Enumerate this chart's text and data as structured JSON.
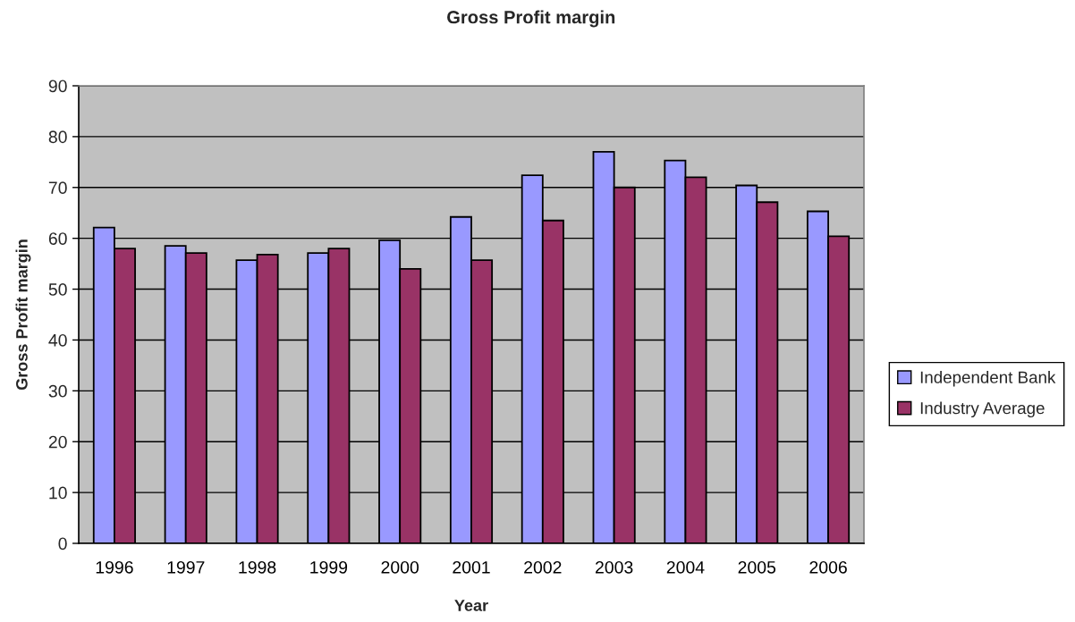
{
  "chart_data": {
    "type": "bar",
    "title": "Gross Profit margin",
    "xlabel": "Year",
    "ylabel": "Gross Profit margin",
    "categories": [
      "1996",
      "1997",
      "1998",
      "1999",
      "2000",
      "2001",
      "2002",
      "2003",
      "2004",
      "2005",
      "2006"
    ],
    "series": [
      {
        "name": "Independent Bank",
        "color": "#9999ff",
        "values": [
          62.1,
          58.5,
          55.7,
          57.1,
          59.6,
          64.2,
          72.4,
          77.0,
          75.3,
          70.4,
          65.3
        ]
      },
      {
        "name": "Industry Average",
        "color": "#993366",
        "values": [
          58.0,
          57.1,
          56.8,
          58.0,
          54.0,
          55.7,
          63.5,
          70.0,
          72.0,
          67.1,
          60.4
        ]
      }
    ],
    "ylim": [
      0,
      90
    ],
    "yticks": [
      0,
      10,
      20,
      30,
      40,
      50,
      60,
      70,
      80,
      90
    ],
    "grid": "y",
    "legend": "right"
  }
}
